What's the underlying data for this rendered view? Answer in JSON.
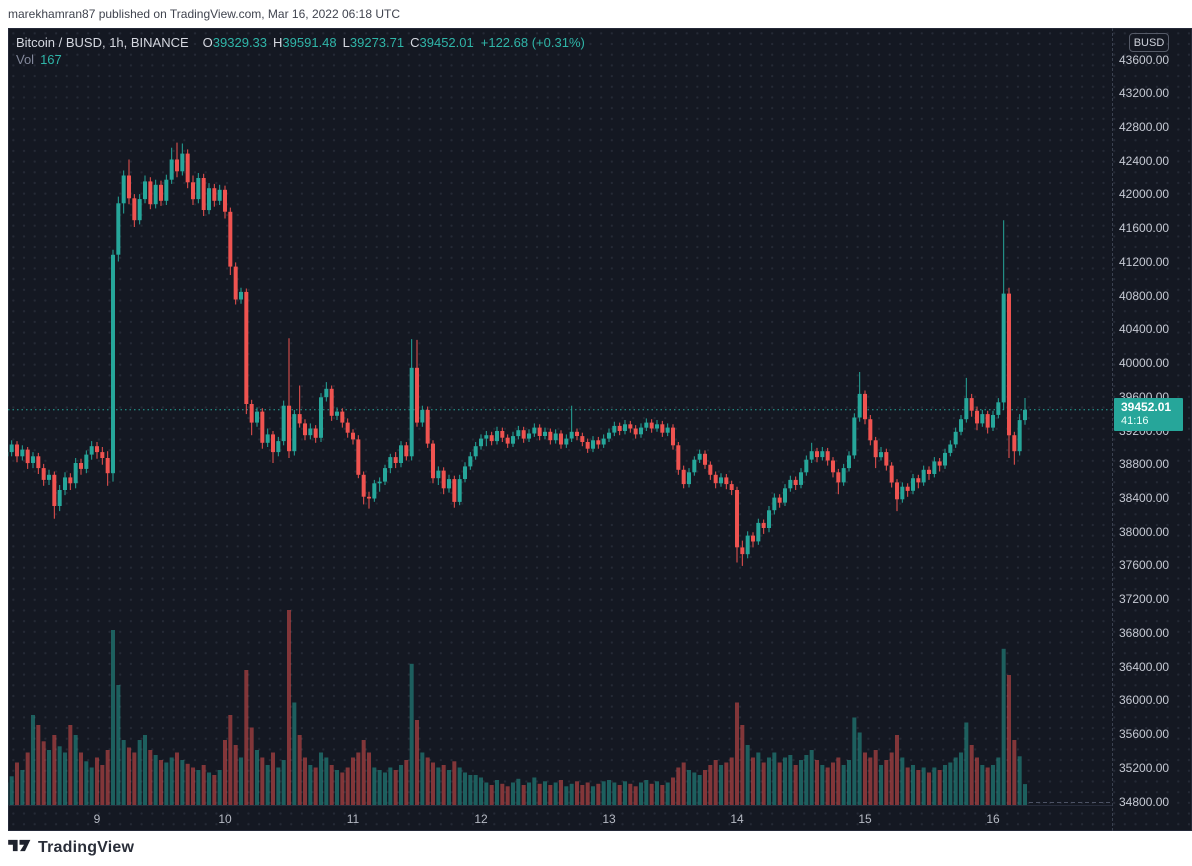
{
  "publish_bar": {
    "text": "marekhamran87 published on TradingView.com, Mar 16, 2022 06:18 UTC"
  },
  "header": {
    "title": "Bitcoin / BUSD, 1h, BINANCE",
    "o_label": "O",
    "o_value": "39329.33",
    "h_label": "H",
    "h_value": "39591.48",
    "l_label": "L",
    "l_value": "39273.71",
    "c_label": "C",
    "c_value": "39452.01",
    "change": "+122.68 (+0.31%)",
    "vol_label": "Vol",
    "vol_value": "167"
  },
  "price_scale": {
    "currency": "BUSD",
    "labels": [
      "43600.00",
      "43200.00",
      "42800.00",
      "42400.00",
      "42000.00",
      "41600.00",
      "41200.00",
      "40800.00",
      "40400.00",
      "40000.00",
      "39600.00",
      "39200.00",
      "38800.00",
      "38400.00",
      "38000.00",
      "37600.00",
      "37200.00",
      "36800.00",
      "36400.00",
      "36000.00",
      "35600.00",
      "35200.00",
      "34800.00"
    ]
  },
  "price_label": {
    "price": "39452.01",
    "countdown": "41:16"
  },
  "time_axis": {
    "ticks": [
      {
        "label": "9",
        "candle_index": 17
      },
      {
        "label": "10",
        "candle_index": 41
      },
      {
        "label": "11",
        "candle_index": 65
      },
      {
        "label": "12",
        "candle_index": 89
      },
      {
        "label": "13",
        "candle_index": 113
      },
      {
        "label": "14",
        "candle_index": 137
      },
      {
        "label": "15",
        "candle_index": 161
      },
      {
        "label": "16",
        "candle_index": 185
      }
    ]
  },
  "footer": {
    "brand": "TradingView"
  },
  "colors": {
    "bg": "#141822",
    "up": "#26a69a",
    "down": "#ef5350",
    "vol_up": "rgba(38,166,154,0.5)",
    "vol_down": "rgba(239,83,80,0.5)",
    "accent": "#26a69a",
    "price_line": "#26a69a"
  },
  "chart_data": {
    "type": "candlestick+volume",
    "symbol": "Bitcoin / BUSD",
    "interval": "1h",
    "exchange": "BINANCE",
    "start_time": "2022-03-08 07:00 UTC",
    "end_time": "2022-03-16 06:00 UTC",
    "timeframe_note": "one candle per hour, day ticks at 00:00",
    "ylim": [
      34800,
      43600
    ],
    "current_price": 39452.01,
    "current_candle": {
      "open": 39329.33,
      "high": 39591.48,
      "low": 39273.71,
      "close": 39452.01,
      "volume": 167
    },
    "columns": [
      "open",
      "high",
      "low",
      "close",
      "volume"
    ],
    "candles": [
      [
        38900,
        39010,
        38840,
        38950,
        180
      ],
      [
        38950,
        39090,
        38900,
        39040,
        230
      ],
      [
        39040,
        39080,
        38830,
        38900,
        340
      ],
      [
        38900,
        39030,
        38850,
        38980,
        280
      ],
      [
        38980,
        39010,
        38750,
        38820,
        420
      ],
      [
        38820,
        38950,
        38760,
        38900,
        720
      ],
      [
        38900,
        38940,
        38690,
        38760,
        640
      ],
      [
        38760,
        38810,
        38550,
        38620,
        510
      ],
      [
        38620,
        38740,
        38560,
        38680,
        440
      ],
      [
        38680,
        38720,
        38160,
        38310,
        560
      ],
      [
        38310,
        38560,
        38250,
        38500,
        470
      ],
      [
        38500,
        38710,
        38440,
        38650,
        420
      ],
      [
        38650,
        38700,
        38500,
        38580,
        640
      ],
      [
        38580,
        38880,
        38520,
        38820,
        560
      ],
      [
        38820,
        38870,
        38680,
        38750,
        420
      ],
      [
        38750,
        38970,
        38700,
        38920,
        350
      ],
      [
        38920,
        39080,
        38860,
        39020,
        300
      ],
      [
        39020,
        39070,
        38870,
        38950,
        380
      ],
      [
        38950,
        39010,
        38800,
        38880,
        320
      ],
      [
        38880,
        38960,
        38550,
        38700,
        440
      ],
      [
        38700,
        41350,
        38600,
        41290,
        1400
      ],
      [
        41290,
        41980,
        41210,
        41900,
        960
      ],
      [
        41900,
        42290,
        41780,
        42230,
        520
      ],
      [
        42230,
        42420,
        41890,
        41960,
        460
      ],
      [
        41960,
        42010,
        41620,
        41700,
        420
      ],
      [
        41700,
        42010,
        41650,
        41950,
        520
      ],
      [
        41950,
        42230,
        41900,
        42160,
        560
      ],
      [
        42160,
        42210,
        41830,
        41890,
        440
      ],
      [
        41890,
        42180,
        41840,
        42120,
        400
      ],
      [
        42120,
        42170,
        41870,
        41930,
        360
      ],
      [
        41930,
        42240,
        41880,
        42180,
        340
      ],
      [
        42180,
        42560,
        42130,
        42420,
        380
      ],
      [
        42420,
        42620,
        42210,
        42280,
        420
      ],
      [
        42280,
        42610,
        42230,
        42490,
        360
      ],
      [
        42490,
        42540,
        42080,
        42150,
        330
      ],
      [
        42150,
        42230,
        41880,
        41950,
        300
      ],
      [
        41950,
        42260,
        41900,
        42200,
        280
      ],
      [
        42200,
        42250,
        41750,
        41820,
        320
      ],
      [
        41820,
        42140,
        41770,
        42080,
        260
      ],
      [
        42080,
        42130,
        41860,
        41930,
        240
      ],
      [
        41930,
        42120,
        41880,
        42060,
        280
      ],
      [
        42060,
        42110,
        41720,
        41800,
        520
      ],
      [
        41800,
        41850,
        41050,
        41150,
        720
      ],
      [
        41150,
        41200,
        40700,
        40760,
        480
      ],
      [
        40760,
        40900,
        40710,
        40850,
        380
      ],
      [
        40850,
        40890,
        39400,
        39520,
        1080
      ],
      [
        39520,
        39570,
        39150,
        39300,
        620
      ],
      [
        39300,
        39480,
        39250,
        39430,
        440
      ],
      [
        39430,
        39470,
        38990,
        39060,
        380
      ],
      [
        39060,
        39230,
        39010,
        39160,
        320
      ],
      [
        39160,
        39200,
        38820,
        38950,
        420
      ],
      [
        38950,
        39130,
        38900,
        39080,
        300
      ],
      [
        39080,
        39560,
        39030,
        39500,
        360
      ],
      [
        39500,
        40300,
        38880,
        38960,
        1560
      ],
      [
        38960,
        39450,
        38910,
        39400,
        820
      ],
      [
        39400,
        39740,
        39240,
        39290,
        560
      ],
      [
        39290,
        39340,
        39090,
        39150,
        380
      ],
      [
        39150,
        39290,
        39100,
        39230,
        320
      ],
      [
        39230,
        39270,
        39060,
        39120,
        300
      ],
      [
        39120,
        39650,
        39070,
        39600,
        420
      ],
      [
        39600,
        39780,
        39550,
        39700,
        380
      ],
      [
        39700,
        39740,
        39320,
        39380,
        320
      ],
      [
        39380,
        39480,
        39330,
        39430,
        280
      ],
      [
        39430,
        39470,
        39240,
        39300,
        260
      ],
      [
        39300,
        39350,
        39120,
        39180,
        300
      ],
      [
        39180,
        39220,
        39040,
        39100,
        380
      ],
      [
        39100,
        39150,
        38640,
        38680,
        420
      ],
      [
        38680,
        38720,
        38330,
        38420,
        520
      ],
      [
        38420,
        38480,
        38280,
        38400,
        420
      ],
      [
        38400,
        38620,
        38360,
        38580,
        300
      ],
      [
        38580,
        38650,
        38480,
        38600,
        280
      ],
      [
        38600,
        38800,
        38560,
        38760,
        260
      ],
      [
        38760,
        38930,
        38700,
        38890,
        300
      ],
      [
        38890,
        38950,
        38760,
        38820,
        280
      ],
      [
        38820,
        39080,
        38770,
        39030,
        320
      ],
      [
        39030,
        39070,
        38850,
        38900,
        360
      ],
      [
        38900,
        40290,
        38850,
        39950,
        1130
      ],
      [
        39950,
        40280,
        39250,
        39300,
        680
      ],
      [
        39300,
        39500,
        39250,
        39450,
        420
      ],
      [
        39450,
        39490,
        39000,
        39050,
        380
      ],
      [
        39050,
        39090,
        38580,
        38640,
        340
      ],
      [
        38640,
        38780,
        38560,
        38730,
        300
      ],
      [
        38730,
        38770,
        38450,
        38520,
        320
      ],
      [
        38520,
        38680,
        38470,
        38630,
        280
      ],
      [
        38630,
        38670,
        38290,
        38360,
        350
      ],
      [
        38360,
        38680,
        38320,
        38630,
        300
      ],
      [
        38630,
        38830,
        38590,
        38780,
        260
      ],
      [
        38780,
        38950,
        38740,
        38900,
        240
      ],
      [
        38900,
        39070,
        38860,
        39020,
        240
      ],
      [
        39020,
        39160,
        38980,
        39110,
        220
      ],
      [
        39110,
        39200,
        39020,
        39150,
        180
      ],
      [
        39150,
        39190,
        39030,
        39080,
        160
      ],
      [
        39080,
        39250,
        39040,
        39200,
        200
      ],
      [
        39200,
        39240,
        39070,
        39120,
        170
      ],
      [
        39120,
        39160,
        39000,
        39050,
        150
      ],
      [
        39050,
        39190,
        39010,
        39140,
        180
      ],
      [
        39140,
        39260,
        39100,
        39210,
        210
      ],
      [
        39210,
        39250,
        39060,
        39110,
        160
      ],
      [
        39110,
        39220,
        39070,
        39170,
        180
      ],
      [
        39170,
        39290,
        39130,
        39240,
        220
      ],
      [
        39240,
        39280,
        39090,
        39140,
        170
      ],
      [
        39140,
        39240,
        39100,
        39190,
        190
      ],
      [
        39190,
        39230,
        39040,
        39090,
        160
      ],
      [
        39090,
        39220,
        39050,
        39170,
        180
      ],
      [
        39170,
        39210,
        38990,
        39040,
        200
      ],
      [
        39040,
        39160,
        39000,
        39110,
        150
      ],
      [
        39110,
        39500,
        39070,
        39190,
        170
      ],
      [
        39190,
        39230,
        39090,
        39140,
        190
      ],
      [
        39140,
        39180,
        39020,
        39070,
        160
      ],
      [
        39070,
        39110,
        38940,
        38990,
        180
      ],
      [
        38990,
        39140,
        38950,
        39090,
        150
      ],
      [
        39090,
        39130,
        38990,
        39040,
        170
      ],
      [
        39040,
        39160,
        39000,
        39110,
        190
      ],
      [
        39110,
        39230,
        39070,
        39180,
        200
      ],
      [
        39180,
        39310,
        39140,
        39260,
        180
      ],
      [
        39260,
        39300,
        39150,
        39200,
        160
      ],
      [
        39200,
        39330,
        39160,
        39280,
        190
      ],
      [
        39280,
        39320,
        39180,
        39230,
        170
      ],
      [
        39230,
        39270,
        39110,
        39160,
        150
      ],
      [
        39160,
        39290,
        39120,
        39240,
        180
      ],
      [
        39240,
        39350,
        39200,
        39300,
        200
      ],
      [
        39300,
        39340,
        39180,
        39230,
        170
      ],
      [
        39230,
        39330,
        39190,
        39280,
        190
      ],
      [
        39280,
        39320,
        39130,
        39180,
        160
      ],
      [
        39180,
        39290,
        39140,
        39240,
        180
      ],
      [
        39240,
        39280,
        38980,
        39030,
        220
      ],
      [
        39030,
        39070,
        38680,
        38740,
        300
      ],
      [
        38740,
        38790,
        38520,
        38570,
        340
      ],
      [
        38570,
        38760,
        38530,
        38710,
        280
      ],
      [
        38710,
        38900,
        38670,
        38860,
        260
      ],
      [
        38860,
        38980,
        38820,
        38930,
        240
      ],
      [
        38930,
        38970,
        38750,
        38800,
        280
      ],
      [
        38800,
        38840,
        38620,
        38680,
        320
      ],
      [
        38680,
        38720,
        38520,
        38580,
        360
      ],
      [
        38580,
        38700,
        38540,
        38650,
        320
      ],
      [
        38650,
        38690,
        38510,
        38570,
        340
      ],
      [
        38570,
        38610,
        38440,
        38500,
        380
      ],
      [
        38500,
        38540,
        37640,
        37820,
        820
      ],
      [
        37820,
        37900,
        37600,
        37740,
        640
      ],
      [
        37740,
        38010,
        37690,
        37960,
        480
      ],
      [
        37960,
        38000,
        37820,
        37890,
        380
      ],
      [
        37890,
        38160,
        37850,
        38110,
        420
      ],
      [
        38110,
        38150,
        37980,
        38050,
        340
      ],
      [
        38050,
        38310,
        38000,
        38260,
        380
      ],
      [
        38260,
        38460,
        38210,
        38410,
        420
      ],
      [
        38410,
        38450,
        38290,
        38350,
        340
      ],
      [
        38350,
        38570,
        38310,
        38520,
        380
      ],
      [
        38520,
        38670,
        38480,
        38620,
        400
      ],
      [
        38620,
        38660,
        38500,
        38560,
        320
      ],
      [
        38560,
        38760,
        38520,
        38710,
        360
      ],
      [
        38710,
        38910,
        38670,
        38860,
        400
      ],
      [
        38860,
        39060,
        38820,
        38960,
        440
      ],
      [
        38960,
        39000,
        38830,
        38890,
        360
      ],
      [
        38890,
        39010,
        38850,
        38960,
        320
      ],
      [
        38960,
        39000,
        38790,
        38850,
        300
      ],
      [
        38850,
        38890,
        38650,
        38710,
        340
      ],
      [
        38710,
        38750,
        38450,
        38590,
        380
      ],
      [
        38590,
        38810,
        38550,
        38760,
        320
      ],
      [
        38760,
        38960,
        38720,
        38910,
        360
      ],
      [
        38910,
        39410,
        38870,
        39360,
        700
      ],
      [
        39360,
        39900,
        39310,
        39640,
        580
      ],
      [
        39640,
        39680,
        39280,
        39340,
        420
      ],
      [
        39340,
        39390,
        39030,
        39090,
        380
      ],
      [
        39090,
        39130,
        38760,
        38890,
        440
      ],
      [
        38890,
        39010,
        38850,
        38950,
        320
      ],
      [
        38950,
        38990,
        38730,
        38790,
        360
      ],
      [
        38790,
        38830,
        38530,
        38590,
        420
      ],
      [
        38590,
        38630,
        38250,
        38390,
        560
      ],
      [
        38390,
        38590,
        38350,
        38540,
        380
      ],
      [
        38540,
        38580,
        38420,
        38490,
        300
      ],
      [
        38490,
        38690,
        38450,
        38640,
        320
      ],
      [
        38640,
        38680,
        38520,
        38590,
        280
      ],
      [
        38590,
        38790,
        38550,
        38740,
        300
      ],
      [
        38740,
        38780,
        38620,
        38690,
        260
      ],
      [
        38690,
        38890,
        38650,
        38840,
        300
      ],
      [
        38840,
        38880,
        38720,
        38790,
        280
      ],
      [
        38790,
        38990,
        38750,
        38940,
        320
      ],
      [
        38940,
        39090,
        38900,
        39040,
        340
      ],
      [
        39040,
        39240,
        39000,
        39190,
        380
      ],
      [
        39190,
        39390,
        39150,
        39340,
        420
      ],
      [
        39340,
        39830,
        39300,
        39590,
        660
      ],
      [
        39590,
        39640,
        39370,
        39440,
        480
      ],
      [
        39440,
        39490,
        39210,
        39290,
        380
      ],
      [
        39290,
        39450,
        39250,
        39400,
        320
      ],
      [
        39400,
        39440,
        39170,
        39240,
        300
      ],
      [
        39240,
        39440,
        39200,
        39390,
        320
      ],
      [
        39390,
        39590,
        39350,
        39540,
        380
      ],
      [
        39540,
        41700,
        39450,
        40830,
        1250
      ],
      [
        40830,
        40900,
        38880,
        39150,
        1040
      ],
      [
        39150,
        39190,
        38800,
        38960,
        520
      ],
      [
        38960,
        39400,
        38910,
        39329.33,
        390
      ],
      [
        39329.33,
        39591.48,
        39273.71,
        39452.01,
        167
      ]
    ]
  }
}
